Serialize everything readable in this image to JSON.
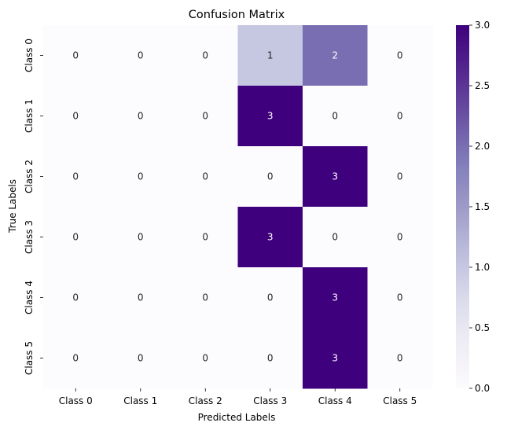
{
  "chart_data": {
    "type": "heatmap",
    "title": "Confusion Matrix",
    "xlabel": "Predicted Labels",
    "ylabel": "True Labels",
    "x_categories": [
      "Class 0",
      "Class 1",
      "Class 2",
      "Class 3",
      "Class 4",
      "Class 5"
    ],
    "y_categories": [
      "Class 0",
      "Class 1",
      "Class 2",
      "Class 3",
      "Class 4",
      "Class 5"
    ],
    "values": [
      [
        0,
        0,
        0,
        1,
        2,
        0
      ],
      [
        0,
        0,
        0,
        3,
        0,
        0
      ],
      [
        0,
        0,
        0,
        0,
        3,
        0
      ],
      [
        0,
        0,
        0,
        3,
        0,
        0
      ],
      [
        0,
        0,
        0,
        0,
        3,
        0
      ],
      [
        0,
        0,
        0,
        0,
        3,
        0
      ]
    ],
    "colorbar": {
      "min": 0,
      "max": 3,
      "ticks": [
        "0.0",
        "0.5",
        "1.0",
        "1.5",
        "2.0",
        "2.5",
        "3.0"
      ],
      "colormap": "Purples",
      "color_low": "#fcfbfd",
      "color_high": "#3f007d"
    }
  }
}
